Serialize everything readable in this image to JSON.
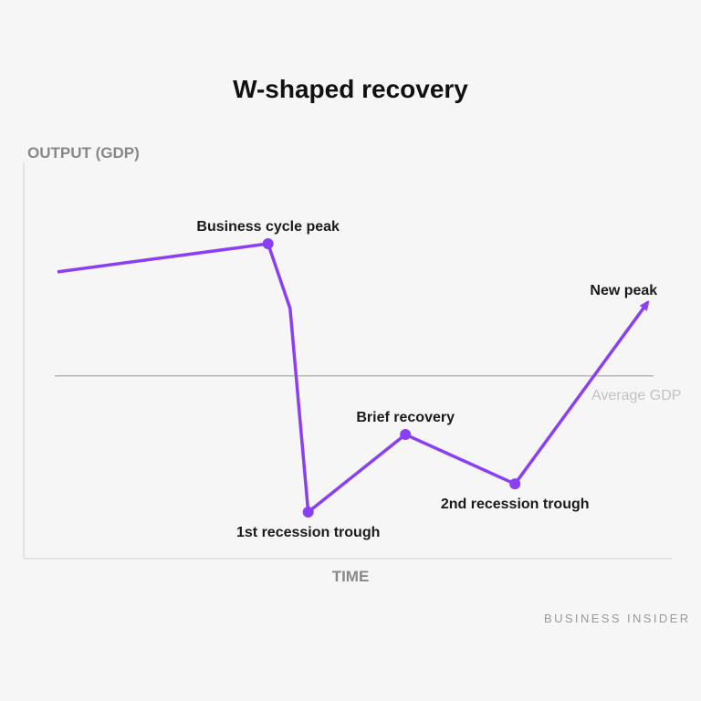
{
  "chart_data": {
    "type": "line",
    "title": "W-shaped recovery",
    "xlabel": "TIME",
    "ylabel": "OUTPUT (GDP)",
    "xlim": [
      0,
      100
    ],
    "ylim": [
      0,
      100
    ],
    "grid": false,
    "line_color": "#8b3ff5",
    "series": [
      {
        "x": [
          5.2,
          37.7,
          41.1,
          43.9,
          58.9,
          75.8,
          96.1
        ],
        "y": [
          71.4,
          78.4,
          62.3,
          11.6,
          30.9,
          18.6,
          63.4
        ],
        "markers": [
          false,
          true,
          false,
          true,
          true,
          true,
          false
        ],
        "ends_with_arrow": true
      }
    ],
    "annotations": [
      {
        "text": "Business cycle peak",
        "point": 1,
        "position": "above"
      },
      {
        "text": "1st recession trough",
        "point": 3,
        "position": "below"
      },
      {
        "text": "Brief recovery",
        "point": 4,
        "position": "above"
      },
      {
        "text": "2nd recession trough",
        "point": 5,
        "position": "below"
      },
      {
        "text": "New peak",
        "point": 6,
        "position": "above-left"
      }
    ],
    "reference_line": {
      "label": "Average GDP",
      "y": 45.5,
      "color": "#b5b5b5"
    }
  },
  "source": "BUSINESS INSIDER"
}
